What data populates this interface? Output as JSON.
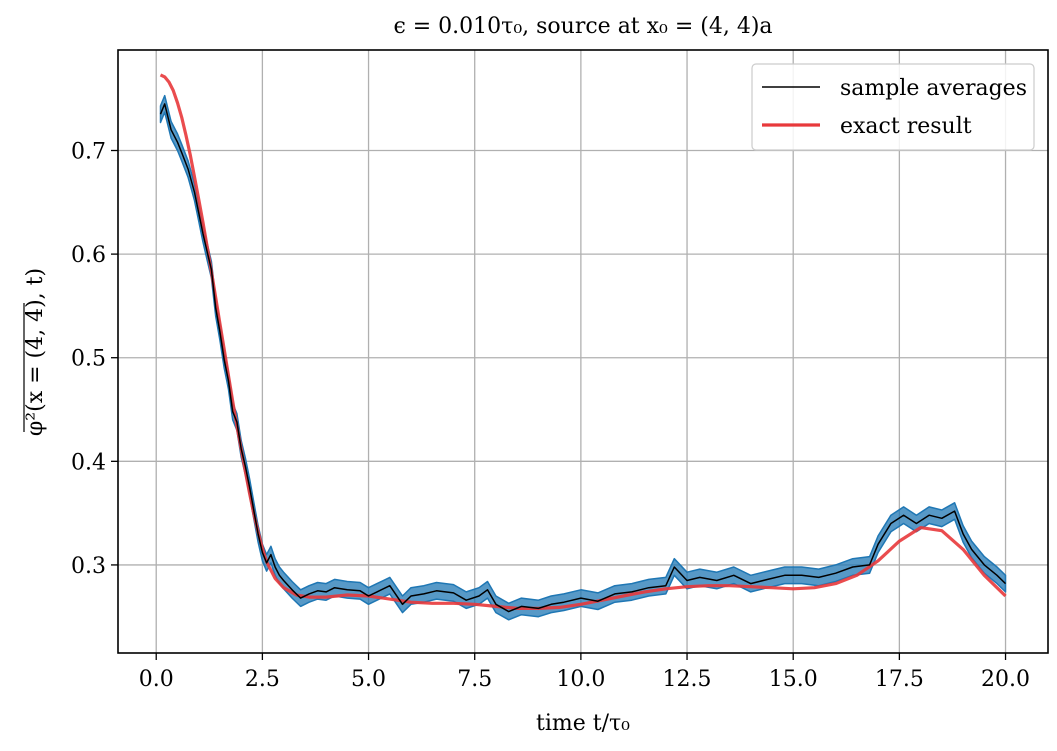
{
  "chart_data": {
    "type": "line",
    "title": "ϵ = 0.010τ₀,  source at x₀ = (4, 4)a",
    "xlabel": "time t/τ₀",
    "ylabel": "φ²(x = (4, 4), t)",
    "xlim": [
      -0.9,
      21.0
    ],
    "ylim": [
      0.215,
      0.797
    ],
    "xticks": [
      0.0,
      2.5,
      5.0,
      7.5,
      10.0,
      12.5,
      15.0,
      17.5,
      20.0
    ],
    "xtick_labels": [
      "0.0",
      "2.5",
      "5.0",
      "7.5",
      "10.0",
      "12.5",
      "15.0",
      "17.5",
      "20.0"
    ],
    "yticks": [
      0.3,
      0.4,
      0.5,
      0.6,
      0.7
    ],
    "ytick_labels": [
      "0.3",
      "0.4",
      "0.5",
      "0.6",
      "0.7"
    ],
    "grid": true,
    "legend_position": "top-right",
    "series": [
      {
        "name": "sample averages",
        "color": "#000000",
        "band_color": "#1f77b4",
        "band_halfwidth": 0.008,
        "x": [
          0.1,
          0.2,
          0.35,
          0.5,
          0.6,
          0.75,
          0.9,
          1.0,
          1.1,
          1.2,
          1.3,
          1.4,
          1.5,
          1.6,
          1.7,
          1.8,
          1.9,
          2.0,
          2.1,
          2.2,
          2.3,
          2.4,
          2.5,
          2.6,
          2.7,
          2.8,
          2.9,
          3.0,
          3.2,
          3.4,
          3.6,
          3.8,
          4.0,
          4.2,
          4.5,
          4.8,
          5.0,
          5.2,
          5.5,
          5.8,
          6.0,
          6.3,
          6.6,
          7.0,
          7.3,
          7.6,
          7.8,
          8.0,
          8.3,
          8.6,
          9.0,
          9.3,
          9.6,
          10.0,
          10.4,
          10.8,
          11.2,
          11.6,
          12.0,
          12.2,
          12.5,
          12.8,
          13.2,
          13.6,
          14.0,
          14.4,
          14.8,
          15.2,
          15.6,
          16.0,
          16.4,
          16.8,
          17.0,
          17.3,
          17.6,
          17.9,
          18.2,
          18.5,
          18.8,
          19.0,
          19.2,
          19.5,
          19.8,
          20.0
        ],
        "y": [
          0.735,
          0.745,
          0.72,
          0.708,
          0.698,
          0.682,
          0.66,
          0.64,
          0.62,
          0.602,
          0.585,
          0.548,
          0.525,
          0.498,
          0.478,
          0.448,
          0.438,
          0.412,
          0.395,
          0.375,
          0.352,
          0.33,
          0.312,
          0.302,
          0.31,
          0.298,
          0.29,
          0.285,
          0.276,
          0.268,
          0.272,
          0.275,
          0.274,
          0.278,
          0.276,
          0.275,
          0.27,
          0.274,
          0.28,
          0.262,
          0.27,
          0.272,
          0.275,
          0.273,
          0.266,
          0.27,
          0.276,
          0.262,
          0.255,
          0.26,
          0.258,
          0.262,
          0.264,
          0.268,
          0.265,
          0.272,
          0.274,
          0.278,
          0.28,
          0.298,
          0.285,
          0.288,
          0.285,
          0.29,
          0.282,
          0.286,
          0.29,
          0.29,
          0.288,
          0.292,
          0.298,
          0.3,
          0.32,
          0.34,
          0.348,
          0.34,
          0.348,
          0.345,
          0.352,
          0.33,
          0.315,
          0.3,
          0.29,
          0.282
        ]
      },
      {
        "name": "exact result",
        "color": "#e8393b",
        "x": [
          0.1,
          0.2,
          0.3,
          0.4,
          0.5,
          0.6,
          0.7,
          0.8,
          0.9,
          1.0,
          1.1,
          1.2,
          1.3,
          1.4,
          1.5,
          1.6,
          1.7,
          1.8,
          1.9,
          2.0,
          2.1,
          2.2,
          2.3,
          2.4,
          2.5,
          2.6,
          2.8,
          3.0,
          3.3,
          3.6,
          4.0,
          4.5,
          5.0,
          5.5,
          6.0,
          6.5,
          7.0,
          7.5,
          8.0,
          8.5,
          9.0,
          9.5,
          10.0,
          10.5,
          11.0,
          11.5,
          12.0,
          12.5,
          13.0,
          13.5,
          14.0,
          14.5,
          15.0,
          15.5,
          16.0,
          16.5,
          17.0,
          17.5,
          18.0,
          18.5,
          19.0,
          19.5,
          20.0
        ],
        "y": [
          0.773,
          0.771,
          0.766,
          0.758,
          0.746,
          0.732,
          0.715,
          0.696,
          0.675,
          0.653,
          0.631,
          0.607,
          0.583,
          0.558,
          0.533,
          0.508,
          0.483,
          0.458,
          0.434,
          0.412,
          0.39,
          0.369,
          0.349,
          0.332,
          0.316,
          0.303,
          0.287,
          0.278,
          0.271,
          0.269,
          0.269,
          0.271,
          0.27,
          0.267,
          0.264,
          0.263,
          0.263,
          0.262,
          0.26,
          0.258,
          0.258,
          0.259,
          0.262,
          0.266,
          0.27,
          0.274,
          0.277,
          0.279,
          0.28,
          0.28,
          0.279,
          0.278,
          0.277,
          0.278,
          0.282,
          0.29,
          0.304,
          0.323,
          0.336,
          0.333,
          0.315,
          0.29,
          0.27
        ]
      }
    ]
  }
}
